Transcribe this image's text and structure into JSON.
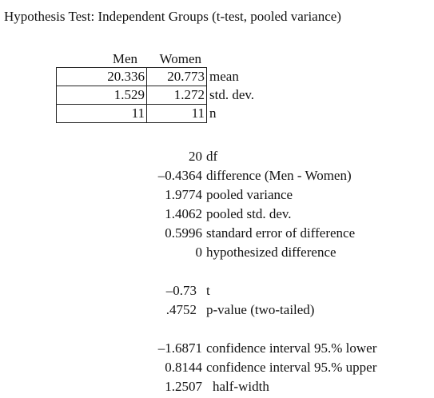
{
  "title": "Hypothesis Test: Independent Groups (t-test, pooled variance)",
  "columns": [
    "Men",
    "Women"
  ],
  "stats_rows": [
    {
      "men": "20.336",
      "women": "20.773",
      "label": "mean"
    },
    {
      "men": "1.529",
      "women": "1.272",
      "label": "std. dev."
    },
    {
      "men": "11",
      "women": "11",
      "label": "n"
    }
  ],
  "results": [
    {
      "value": "20",
      "label": "df"
    },
    {
      "value": "–0.4364",
      "label": "difference (Men - Women)"
    },
    {
      "value": "1.9774",
      "label": "pooled variance"
    },
    {
      "value": "1.4062",
      "label": "pooled std. dev."
    },
    {
      "value": "0.5996",
      "label": "standard error of difference"
    },
    {
      "value": "0",
      "label": "hypothesized difference"
    }
  ],
  "test": [
    {
      "value": "–0.73",
      "label": "t"
    },
    {
      "value": ".4752",
      "label": "p-value (two-tailed)"
    }
  ],
  "ci": [
    {
      "value": "–1.6871",
      "label": "confidence interval 95.% lower"
    },
    {
      "value": "0.8144",
      "label": "confidence interval 95.% upper"
    },
    {
      "value": "1.2507",
      "label": "half-width"
    }
  ]
}
